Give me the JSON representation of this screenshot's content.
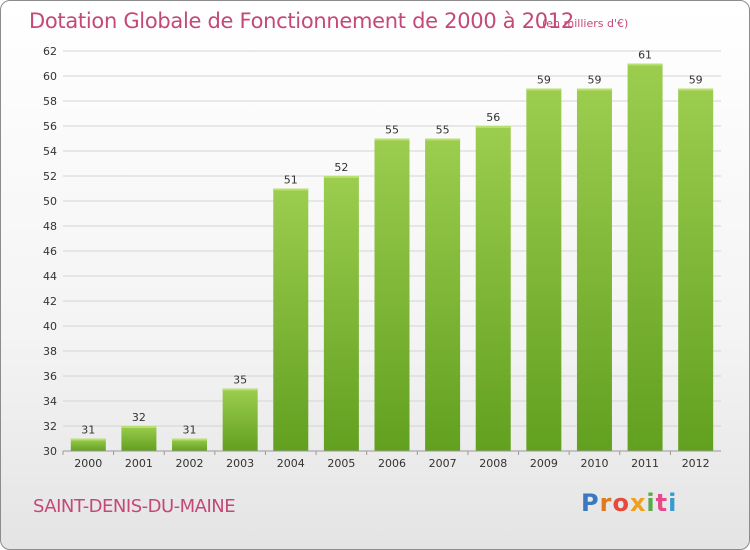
{
  "header": {
    "title": "Dotation Globale de Fonctionnement de 2000 à 2012",
    "unit": "(en milliers d'€)"
  },
  "footer": {
    "commune": "SAINT-DENIS-DU-MAINE",
    "logo": "Proxiti",
    "logo_colors": [
      "#3a78c0",
      "#e07a20",
      "#e64a3a",
      "#f0a020",
      "#5aa84a",
      "#e64a8a",
      "#3a9ad0"
    ]
  },
  "chart_data": {
    "type": "bar",
    "categories": [
      "2000",
      "2001",
      "2002",
      "2003",
      "2004",
      "2005",
      "2006",
      "2007",
      "2008",
      "2009",
      "2010",
      "2011",
      "2012"
    ],
    "values": [
      31,
      32,
      31,
      35,
      51,
      52,
      55,
      55,
      56,
      59,
      59,
      61,
      59
    ],
    "yticks": [
      30,
      32,
      34,
      36,
      38,
      40,
      42,
      44,
      46,
      48,
      50,
      52,
      54,
      56,
      58,
      60,
      62
    ],
    "ylim": [
      30,
      62
    ],
    "grid": true,
    "bar_color_top": "#9ccd4e",
    "bar_color_bottom": "#62a020"
  }
}
